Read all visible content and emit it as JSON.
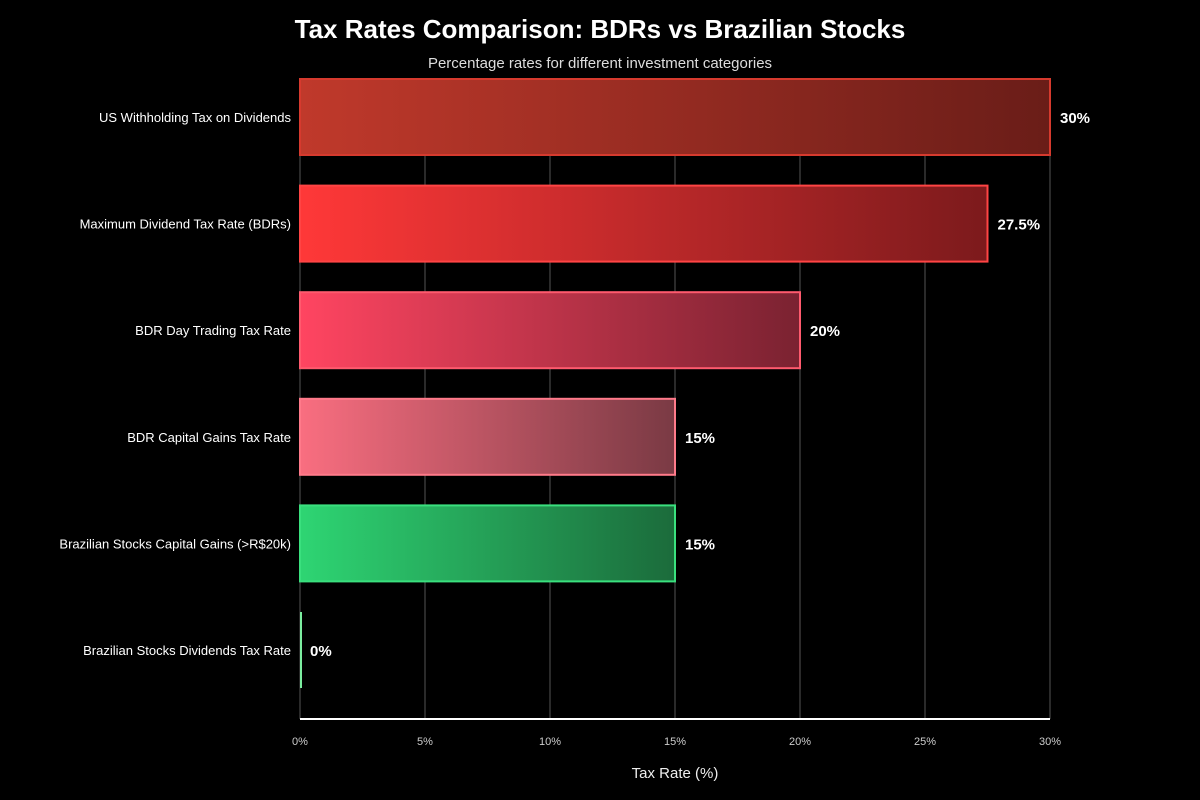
{
  "chart_data": {
    "type": "bar",
    "orientation": "horizontal",
    "title": "Tax Rates Comparison: BDRs vs Brazilian Stocks",
    "subtitle": "Percentage rates for different investment categories",
    "xlabel": "Tax Rate (%)",
    "ylabel": "",
    "xlim": [
      0,
      30
    ],
    "xticks": [
      "0%",
      "5%",
      "10%",
      "15%",
      "20%",
      "25%",
      "30%"
    ],
    "grid": "vertical",
    "categories": [
      "US Withholding Tax on Dividends",
      "Maximum Dividend Tax Rate (BDRs)",
      "BDR Day Trading Tax Rate",
      "BDR Capital Gains Tax Rate",
      "Brazilian Stocks Capital Gains (>R$20k)",
      "Brazilian Stocks Dividends Tax Rate"
    ],
    "values": [
      30,
      27.5,
      20,
      15,
      15,
      0
    ],
    "data_labels": [
      "30%",
      "27.5%",
      "20%",
      "15%",
      "15%",
      "0%"
    ],
    "colors": [
      {
        "start": "#c0392b",
        "end": "#6a1d18",
        "border": "#d63a2e"
      },
      {
        "start": "#ff3838",
        "end": "#7c1a1c",
        "border": "#ff4444"
      },
      {
        "start": "#ff4561",
        "end": "#7a2231",
        "border": "#ff5a6e"
      },
      {
        "start": "#f96e80",
        "end": "#7a3a44",
        "border": "#ff7a8a"
      },
      {
        "start": "#2ed573",
        "end": "#1b6b3b",
        "border": "#3ae07e"
      },
      {
        "start": "#7bed9f",
        "end": "#7bed9f",
        "border": "#7bed9f"
      }
    ]
  }
}
